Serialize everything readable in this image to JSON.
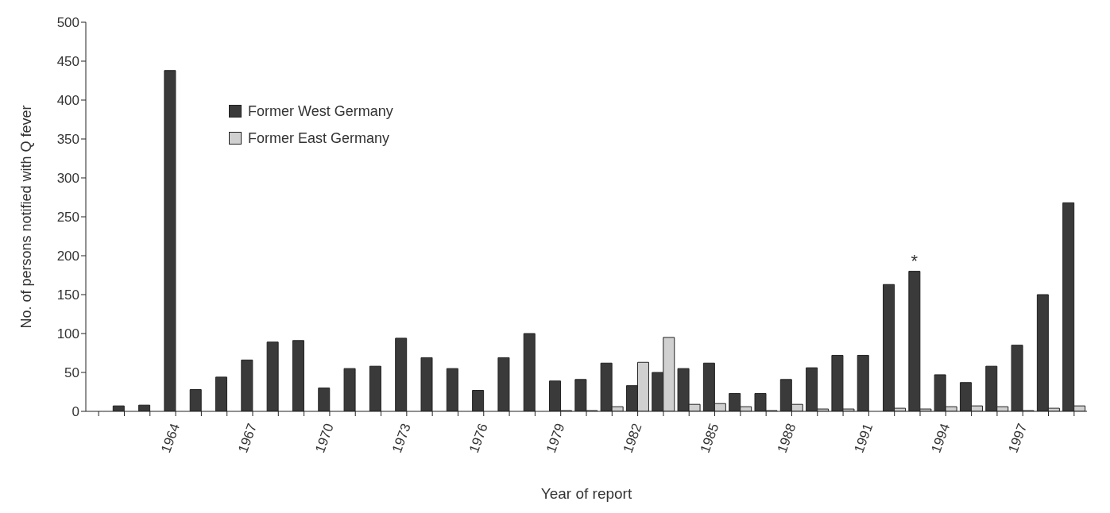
{
  "chart_data": {
    "type": "bar",
    "xlabel": "Year of report",
    "ylabel": "No. of persons notified with Q fever",
    "categories": [
      null,
      null,
      null,
      "1964",
      null,
      null,
      "1967",
      null,
      null,
      "1970",
      null,
      null,
      "1973",
      null,
      null,
      "1976",
      null,
      null,
      "1979",
      null,
      null,
      "1982",
      null,
      null,
      "1985",
      null,
      null,
      "1988",
      null,
      null,
      "1991",
      null,
      null,
      "1994",
      null,
      null,
      "1997",
      null,
      null
    ],
    "series": [
      {
        "name": "Former West Germany",
        "color": "#3a3a3a",
        "values": [
          null,
          7,
          8,
          438,
          28,
          44,
          66,
          89,
          91,
          30,
          55,
          58,
          94,
          69,
          55,
          27,
          69,
          100,
          39,
          41,
          62,
          33,
          50,
          55,
          62,
          23,
          23,
          41,
          56,
          72,
          72,
          163,
          180,
          47,
          37,
          58,
          85,
          150,
          268
        ],
        "value_labels": [
          null,
          null,
          null,
          null,
          null,
          null,
          null,
          null,
          null,
          null,
          null,
          null,
          null,
          null,
          null,
          null,
          null,
          null,
          null,
          null,
          null,
          null,
          null,
          null,
          null,
          null,
          null,
          null,
          null,
          null,
          null,
          null,
          "*",
          null,
          null,
          null,
          null,
          null,
          null
        ]
      },
      {
        "name": "Former East Germany",
        "color": "#d0d0d0",
        "values": [
          null,
          null,
          null,
          null,
          null,
          null,
          null,
          null,
          null,
          null,
          null,
          null,
          null,
          null,
          null,
          null,
          null,
          null,
          1,
          1,
          6,
          63,
          95,
          9,
          10,
          6,
          1,
          9,
          3,
          3,
          null,
          4,
          3,
          6,
          7,
          6,
          1,
          4,
          7
        ]
      }
    ],
    "ylim": [
      0,
      500
    ],
    "yticks": [
      0,
      50,
      100,
      150,
      200,
      250,
      300,
      350,
      400,
      450,
      500
    ],
    "grid": false,
    "legend": "top left"
  }
}
